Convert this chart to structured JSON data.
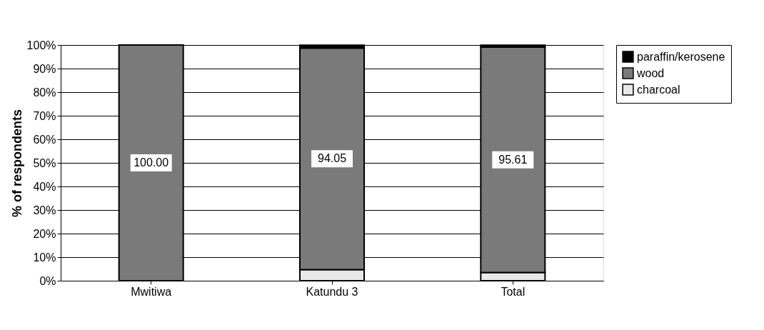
{
  "chart_data": {
    "type": "bar",
    "stacked": true,
    "ylabel": "% of respondents",
    "categories": [
      "Mwitiwa",
      "Katundu 3",
      "Total"
    ],
    "series": [
      {
        "name": "charcoal",
        "color": "#e8e8e8",
        "values": [
          0,
          4.7,
          3.5
        ]
      },
      {
        "name": "wood",
        "color": "#7a7a7a",
        "values": [
          100.0,
          94.05,
          95.61
        ],
        "value_labels": [
          "100.00",
          "94.05",
          "95.61"
        ]
      },
      {
        "name": "paraffin/kerosene",
        "color": "#000000",
        "values": [
          0,
          1.2,
          0.8
        ]
      }
    ],
    "ylim": [
      0,
      100
    ],
    "yticks": [
      {
        "value": 0,
        "label": "0%"
      },
      {
        "value": 10,
        "label": "10%"
      },
      {
        "value": 20,
        "label": "20%"
      },
      {
        "value": 30,
        "label": "30%"
      },
      {
        "value": 40,
        "label": "40%"
      },
      {
        "value": 50,
        "label": "50%"
      },
      {
        "value": 60,
        "label": "60%"
      },
      {
        "value": 70,
        "label": "70%"
      },
      {
        "value": 80,
        "label": "80%"
      },
      {
        "value": 90,
        "label": "90%"
      },
      {
        "value": 100,
        "label": "100%"
      }
    ],
    "grid": "y",
    "legend": "right"
  }
}
